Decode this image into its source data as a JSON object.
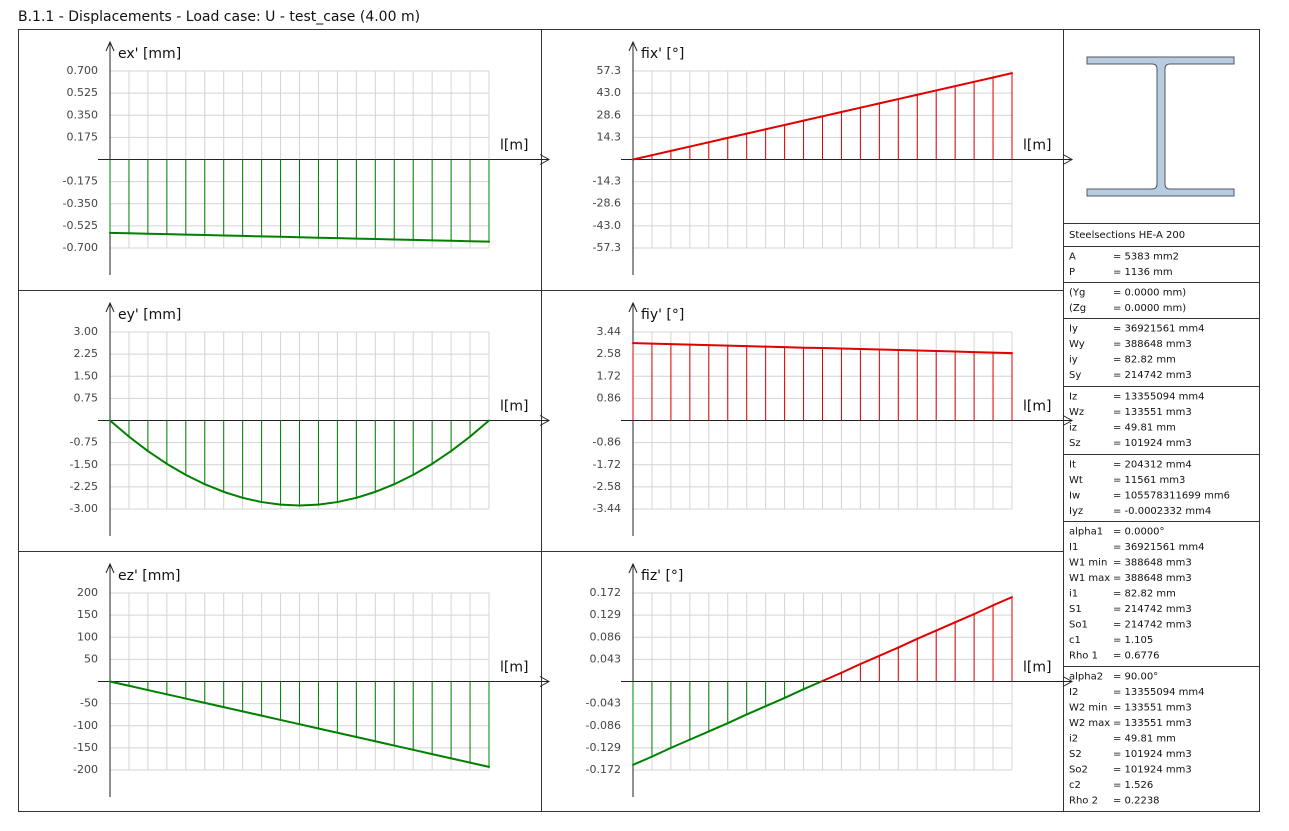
{
  "title": "B.1.1 - Displacements - Load case: U - test_case (4.00 m)",
  "chart_data": [
    {
      "type": "line",
      "ylabel": "ex' [mm]",
      "xlabel": "l[m]",
      "positive_color": "#e00000",
      "negative_color": "#008000",
      "grid": true,
      "x": [
        0,
        0.2,
        0.4,
        0.6,
        0.8,
        1,
        1.2,
        1.4,
        1.6,
        1.8,
        2,
        2.2,
        2.4,
        2.6,
        2.8,
        3,
        3.2,
        3.4,
        3.6,
        3.8,
        4
      ],
      "xlim": [
        0,
        4
      ],
      "values": [
        -0.58,
        -0.5835,
        -0.587,
        -0.5905,
        -0.594,
        -0.5975,
        -0.601,
        -0.6045,
        -0.608,
        -0.6115,
        -0.615,
        -0.6185,
        -0.622,
        -0.6255,
        -0.629,
        -0.6325,
        -0.636,
        -0.6395,
        -0.643,
        -0.6465,
        -0.65
      ],
      "ylim": [
        -0.7,
        0.7
      ],
      "yticks": [
        {
          "value": 0.7,
          "label": "0.700"
        },
        0.525,
        {
          "value": 0.35,
          "label": "0.350"
        },
        0.175,
        -0.175,
        {
          "value": -0.35,
          "label": "-0.350"
        },
        -0.525,
        {
          "value": -0.7,
          "label": "-0.700"
        }
      ]
    },
    {
      "type": "line",
      "ylabel": "fix' [°]",
      "xlabel": "l[m]",
      "positive_color": "#e00000",
      "negative_color": "#008000",
      "grid": true,
      "x": [
        0,
        0.2,
        0.4,
        0.6,
        0.8,
        1,
        1.2,
        1.4,
        1.6,
        1.8,
        2,
        2.2,
        2.4,
        2.6,
        2.8,
        3,
        3.2,
        3.4,
        3.6,
        3.8,
        4
      ],
      "xlim": [
        0,
        4
      ],
      "values": [
        0,
        2.8,
        5.59,
        8.39,
        11.18,
        13.98,
        16.77,
        19.57,
        22.36,
        25.16,
        27.95,
        30.75,
        33.54,
        36.34,
        39.13,
        41.93,
        44.72,
        47.52,
        50.31,
        53.11,
        55.9
      ],
      "ylim": [
        -57.3,
        57.3
      ],
      "yticks": [
        57.3,
        {
          "value": 43,
          "label": "43.0"
        },
        28.6,
        14.3,
        -14.3,
        -28.6,
        {
          "value": -43,
          "label": "-43.0"
        },
        -57.3
      ]
    },
    {
      "type": "line",
      "ylabel": "ey' [mm]",
      "xlabel": "l[m]",
      "positive_color": "#e00000",
      "negative_color": "#008000",
      "grid": true,
      "x": [
        0,
        0.2,
        0.4,
        0.6,
        0.8,
        1,
        1.2,
        1.4,
        1.6,
        1.8,
        2,
        2.2,
        2.4,
        2.6,
        2.8,
        3,
        3.2,
        3.4,
        3.6,
        3.8,
        4
      ],
      "xlim": [
        0,
        4
      ],
      "values": [
        0,
        -0.547,
        -1.037,
        -1.469,
        -1.843,
        -2.16,
        -2.419,
        -2.621,
        -2.765,
        -2.851,
        -2.88,
        -2.851,
        -2.765,
        -2.621,
        -2.419,
        -2.16,
        -1.843,
        -1.469,
        -1.037,
        -0.547,
        0
      ],
      "ylim": [
        -3,
        3
      ],
      "yticks": [
        {
          "value": 3,
          "label": "3.00"
        },
        2.25,
        {
          "value": 1.5,
          "label": "1.50"
        },
        0.75,
        -0.75,
        {
          "value": -1.5,
          "label": "-1.50"
        },
        -2.25,
        {
          "value": -3,
          "label": "-3.00"
        }
      ]
    },
    {
      "type": "line",
      "ylabel": "fiy' [°]",
      "xlabel": "l[m]",
      "positive_color": "#e00000",
      "negative_color": "#008000",
      "grid": true,
      "x": [
        0,
        0.2,
        0.4,
        0.6,
        0.8,
        1,
        1.2,
        1.4,
        1.6,
        1.8,
        2,
        2.2,
        2.4,
        2.6,
        2.8,
        3,
        3.2,
        3.4,
        3.6,
        3.8,
        4
      ],
      "xlim": [
        0,
        4
      ],
      "values": [
        3.01,
        2.99,
        2.97,
        2.95,
        2.93,
        2.91,
        2.89,
        2.87,
        2.85,
        2.83,
        2.82,
        2.8,
        2.78,
        2.76,
        2.74,
        2.72,
        2.7,
        2.68,
        2.66,
        2.64,
        2.62
      ],
      "ylim": [
        -3.44,
        3.44
      ],
      "yticks": [
        3.44,
        2.58,
        1.72,
        0.86,
        -0.86,
        -1.72,
        -2.58,
        -3.44
      ]
    },
    {
      "type": "line",
      "ylabel": "ez' [mm]",
      "xlabel": "l[m]",
      "positive_color": "#e00000",
      "negative_color": "#008000",
      "grid": true,
      "x": [
        0,
        0.2,
        0.4,
        0.6,
        0.8,
        1,
        1.2,
        1.4,
        1.6,
        1.8,
        2,
        2.2,
        2.4,
        2.6,
        2.8,
        3,
        3.2,
        3.4,
        3.6,
        3.8,
        4
      ],
      "xlim": [
        0,
        4
      ],
      "values": [
        0,
        -9.65,
        -19.3,
        -28.95,
        -38.6,
        -48.25,
        -57.9,
        -67.55,
        -77.2,
        -86.85,
        -96.5,
        -106.15,
        -115.8,
        -125.45,
        -135.1,
        -144.75,
        -154.4,
        -164.05,
        -173.7,
        -183.35,
        -193
      ],
      "ylim": [
        -200,
        200
      ],
      "yticks": [
        200,
        150,
        100,
        50,
        -50,
        -100,
        -150,
        -200
      ]
    },
    {
      "type": "line",
      "ylabel": "fiz' [°]",
      "xlabel": "l[m]",
      "positive_color": "#e00000",
      "negative_color": "#008000",
      "grid": true,
      "x": [
        0,
        0.2,
        0.4,
        0.6,
        0.8,
        1,
        1.2,
        1.4,
        1.6,
        1.8,
        2,
        2.2,
        2.4,
        2.6,
        2.8,
        3,
        3.2,
        3.4,
        3.6,
        3.8,
        4
      ],
      "xlim": [
        0,
        4
      ],
      "values": [
        -0.162,
        -0.146,
        -0.129,
        -0.113,
        -0.097,
        -0.081,
        -0.064,
        -0.048,
        -0.032,
        -0.015,
        0.001,
        0.017,
        0.034,
        0.05,
        0.066,
        0.083,
        0.099,
        0.115,
        0.131,
        0.148,
        0.164
      ],
      "ylim": [
        -0.172,
        0.172
      ],
      "yticks": [
        0.172,
        0.129,
        0.086,
        0.043,
        -0.043,
        -0.086,
        -0.129,
        -0.172
      ]
    }
  ],
  "section": {
    "heading": "Steelsections HE-A 200",
    "groups": [
      [
        [
          "A",
          "= 5383 mm2"
        ],
        [
          "P",
          "= 1136 mm"
        ]
      ],
      [
        [
          "(Yg",
          "= 0.0000 mm)"
        ],
        [
          "(Zg",
          "= 0.0000 mm)"
        ]
      ],
      [
        [
          "Iy",
          "= 36921561 mm4"
        ],
        [
          "Wy",
          "= 388648 mm3"
        ],
        [
          "iy",
          "= 82.82 mm"
        ],
        [
          "Sy",
          "= 214742 mm3"
        ]
      ],
      [
        [
          "Iz",
          "= 13355094 mm4"
        ],
        [
          "Wz",
          "= 133551 mm3"
        ],
        [
          "iz",
          "= 49.81 mm"
        ],
        [
          "Sz",
          "= 101924 mm3"
        ]
      ],
      [
        [
          "It",
          "= 204312 mm4"
        ],
        [
          "Wt",
          "= 11561 mm3"
        ],
        [
          "Iw",
          "= 105578311699 mm6"
        ],
        [
          "Iyz",
          "= -0.0002332 mm4"
        ]
      ],
      [
        [
          "alpha1",
          "= 0.0000°"
        ],
        [
          "I1",
          "= 36921561 mm4"
        ],
        [
          "W1 min",
          "= 388648 mm3"
        ],
        [
          "W1 max",
          "= 388648 mm3"
        ],
        [
          "i1",
          "= 82.82 mm"
        ],
        [
          "S1",
          "= 214742 mm3"
        ],
        [
          "So1",
          "= 214742 mm3"
        ],
        [
          "c1",
          "= 1.105"
        ],
        [
          "Rho 1",
          "= 0.6776"
        ]
      ],
      [
        [
          "alpha2",
          "= 90.00°"
        ],
        [
          "I2",
          "= 13355094 mm4"
        ],
        [
          "W2 min",
          "= 133551 mm3"
        ],
        [
          "W2 max",
          "= 133551 mm3"
        ],
        [
          "i2",
          "= 49.81 mm"
        ],
        [
          "S2",
          "= 101924 mm3"
        ],
        [
          "So2",
          "= 101924 mm3"
        ],
        [
          "c2",
          "= 1.526"
        ],
        [
          "Rho 2",
          "= 0.2238"
        ]
      ]
    ]
  }
}
